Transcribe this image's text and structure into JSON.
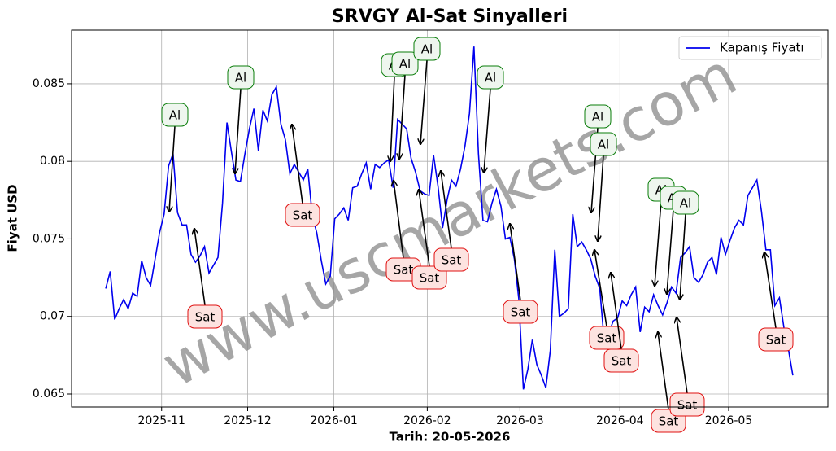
{
  "chart_data": {
    "type": "line",
    "title": "SRVGY Al-Sat Sinyalleri",
    "xlabel": "Tarih: 20-05-2026",
    "ylabel": "Fiyat USD",
    "watermark": "www.uscmarkets.com",
    "legend": "upper right",
    "grid": true,
    "series": [
      {
        "name": "Kapanış Fiyatı",
        "color": "#0000ee",
        "values": [
          0.0718,
          0.0729,
          0.0698,
          0.0705,
          0.0711,
          0.0705,
          0.0715,
          0.0713,
          0.0736,
          0.0725,
          0.072,
          0.0737,
          0.0754,
          0.0766,
          0.0797,
          0.0805,
          0.0767,
          0.0759,
          0.0759,
          0.074,
          0.0735,
          0.0739,
          0.0745,
          0.0728,
          0.0733,
          0.0738,
          0.0773,
          0.0825,
          0.0806,
          0.0788,
          0.0787,
          0.0805,
          0.0821,
          0.0834,
          0.0807,
          0.0833,
          0.0826,
          0.0843,
          0.0848,
          0.0824,
          0.0814,
          0.0792,
          0.0798,
          0.0793,
          0.0788,
          0.0795,
          0.0765,
          0.0754,
          0.0736,
          0.0721,
          0.0726,
          0.0763,
          0.0766,
          0.077,
          0.0762,
          0.0783,
          0.0784,
          0.0792,
          0.0799,
          0.0782,
          0.0798,
          0.0796,
          0.0799,
          0.0801,
          0.0783,
          0.0827,
          0.0824,
          0.0821,
          0.0802,
          0.0793,
          0.0781,
          0.0779,
          0.0778,
          0.0804,
          0.0784,
          0.0757,
          0.0775,
          0.0788,
          0.0784,
          0.0795,
          0.081,
          0.0831,
          0.0874,
          0.0805,
          0.0762,
          0.0761,
          0.0773,
          0.0782,
          0.0771,
          0.075,
          0.0751,
          0.0737,
          0.0711,
          0.0653,
          0.0666,
          0.0685,
          0.0669,
          0.0662,
          0.0654,
          0.0678,
          0.0743,
          0.07,
          0.0702,
          0.0705,
          0.0766,
          0.0745,
          0.0748,
          0.0743,
          0.0737,
          0.0726,
          0.0718,
          0.0684,
          0.0689,
          0.0697,
          0.0699,
          0.071,
          0.0707,
          0.0714,
          0.0719,
          0.069,
          0.0706,
          0.0703,
          0.0714,
          0.0707,
          0.0701,
          0.0709,
          0.0719,
          0.0715,
          0.0738,
          0.0741,
          0.0745,
          0.0725,
          0.0722,
          0.0727,
          0.0735,
          0.0738,
          0.0727,
          0.0751,
          0.074,
          0.0749,
          0.0757,
          0.0762,
          0.0759,
          0.0778,
          0.0783,
          0.0788,
          0.0768,
          0.0743,
          0.0743,
          0.0707,
          0.0712,
          0.0693,
          0.0679,
          0.0662
        ]
      }
    ],
    "xlim": [
      -7.6,
      160.8
    ],
    "xticks": [
      {
        "value": 12.45,
        "label": "2025-11"
      },
      {
        "value": 31.6,
        "label": "2025-12"
      },
      {
        "value": 50.8,
        "label": "2026-01"
      },
      {
        "value": 71.6,
        "label": "2026-02"
      },
      {
        "value": 92.25,
        "label": "2026-03"
      },
      {
        "value": 114.5,
        "label": "2026-04"
      },
      {
        "value": 138.7,
        "label": "2026-05"
      }
    ],
    "ylim": [
      0.06416,
      0.08846
    ],
    "yticks": [
      0.065,
      0.07,
      0.075,
      0.08,
      0.085
    ],
    "annotations": [
      "Al",
      "Sat",
      "Al",
      "Sat",
      "Al",
      "Al",
      "Al",
      "Sat",
      "Sat",
      "Sat",
      "Al",
      "Sat",
      "Al",
      "Al",
      "Sat",
      "Sat",
      "Al",
      "Al",
      "Al",
      "Sat",
      "Sat",
      "Sat"
    ]
  }
}
